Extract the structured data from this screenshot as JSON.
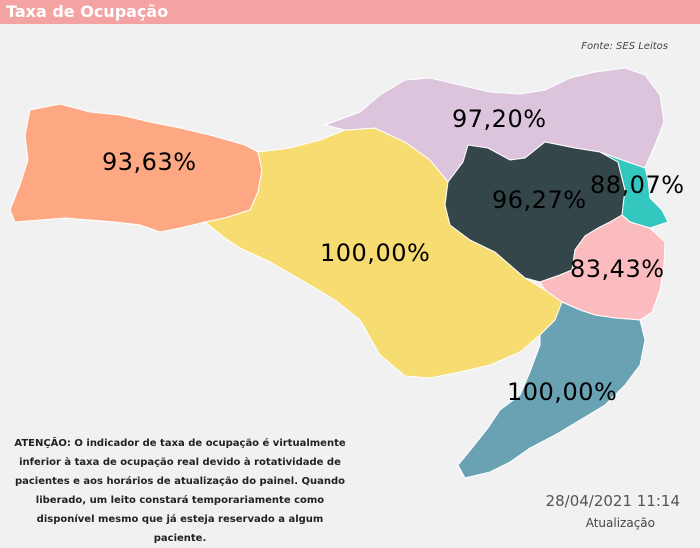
{
  "header": {
    "title": "Taxa de Ocupação"
  },
  "source": "Fonte: SES Leitos",
  "colors": {
    "west": "#fda882",
    "central": "#f7dc72",
    "north": "#dbc4dc",
    "valley": "#344649",
    "north_coast": "#33c7c0",
    "capital": "#fbbcbf",
    "south": "#69a2b3"
  },
  "regions": [
    {
      "id": "west",
      "label": "93,63%"
    },
    {
      "id": "north",
      "label": "97,20%"
    },
    {
      "id": "valley",
      "label": "96,27%"
    },
    {
      "id": "north_coast",
      "label": "88,07%"
    },
    {
      "id": "central",
      "label": "100,00%"
    },
    {
      "id": "capital",
      "label": "83,43%"
    },
    {
      "id": "south",
      "label": "100,00%"
    }
  ],
  "notice": "ATENÇÃO: O indicador de taxa de ocupação é virtualmente inferior à taxa de ocupação real devido à rotatividade de pacientes e aos horários de atualização do painel.  Quando liberado, um leito constará temporariamente como disponível mesmo que já esteja reservado a algum paciente.",
  "update": {
    "datetime": "28/04/2021 11:14",
    "label": "Atualização"
  }
}
